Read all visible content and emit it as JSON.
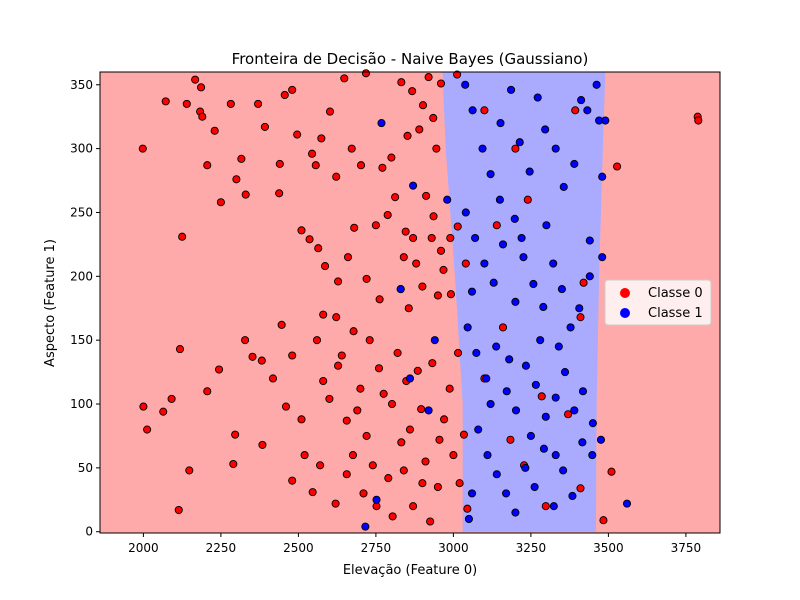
{
  "chart_data": {
    "type": "scatter",
    "title": "Fronteira de Decisão - Naive Bayes (Gaussiano)",
    "xlabel": "Elevação (Feature 0)",
    "ylabel": "Aspecto (Feature 1)",
    "xlim": [
      1860,
      3860
    ],
    "ylim": [
      -1,
      360
    ],
    "x_ticks": [
      2000,
      2250,
      2500,
      2750,
      3000,
      3250,
      3500,
      3750
    ],
    "y_ticks": [
      0,
      50,
      100,
      150,
      200,
      250,
      300,
      350
    ],
    "grid": false,
    "legend_position": "right",
    "decision_regions": {
      "class_0_color": "#ffaaaa",
      "class_1_color": "#aaaaff",
      "class_1_band": [
        {
          "y": 0,
          "x_start": 3030,
          "x_end": 3460
        },
        {
          "y": 100,
          "x_start": 3030,
          "x_end": 3462
        },
        {
          "y": 200,
          "x_start": 3005,
          "x_end": 3470
        },
        {
          "y": 300,
          "x_start": 2975,
          "x_end": 3482
        },
        {
          "y": 360,
          "x_start": 2965,
          "x_end": 3490
        }
      ]
    },
    "series": [
      {
        "name": "Classe 0",
        "color": "#ff0000",
        "points": [
          [
            1998,
            300
          ],
          [
            2072,
            337
          ],
          [
            2140,
            335
          ],
          [
            2167,
            354
          ],
          [
            2183,
            329
          ],
          [
            2206,
            287
          ],
          [
            2186,
            348
          ],
          [
            2190,
            325
          ],
          [
            2230,
            314
          ],
          [
            2282,
            335
          ],
          [
            2300,
            276
          ],
          [
            2330,
            264
          ],
          [
            2316,
            292
          ],
          [
            2370,
            335
          ],
          [
            2392,
            317
          ],
          [
            2440,
            288
          ],
          [
            2456,
            342
          ],
          [
            2480,
            346
          ],
          [
            2496,
            311
          ],
          [
            2544,
            296
          ],
          [
            2556,
            287
          ],
          [
            2574,
            308
          ],
          [
            2602,
            329
          ],
          [
            2622,
            278
          ],
          [
            2648,
            355
          ],
          [
            2672,
            300
          ],
          [
            2702,
            287
          ],
          [
            2718,
            359
          ],
          [
            2771,
            285
          ],
          [
            2800,
            293
          ],
          [
            2832,
            352
          ],
          [
            2867,
            345
          ],
          [
            2852,
            310
          ],
          [
            2902,
            334
          ],
          [
            2920,
            356
          ],
          [
            2945,
            300
          ],
          [
            2960,
            351
          ],
          [
            3012,
            358
          ],
          [
            2890,
            315
          ],
          [
            2935,
            324
          ],
          [
            2125,
            231
          ],
          [
            2250,
            258
          ],
          [
            2438,
            265
          ],
          [
            2510,
            236
          ],
          [
            2536,
            229
          ],
          [
            2564,
            222
          ],
          [
            2586,
            208
          ],
          [
            2628,
            196
          ],
          [
            2660,
            215
          ],
          [
            2680,
            238
          ],
          [
            2750,
            240
          ],
          [
            2788,
            248
          ],
          [
            2812,
            262
          ],
          [
            2846,
            235
          ],
          [
            2880,
            210
          ],
          [
            2912,
            263
          ],
          [
            2936,
            247
          ],
          [
            2960,
            220
          ],
          [
            2990,
            230
          ],
          [
            3040,
            210
          ],
          [
            2720,
            198
          ],
          [
            2762,
            182
          ],
          [
            2830,
            190
          ],
          [
            2856,
            175
          ],
          [
            2900,
            192
          ],
          [
            2992,
            186
          ],
          [
            2622,
            168
          ],
          [
            2678,
            157
          ],
          [
            2580,
            170
          ],
          [
            3014,
            239
          ],
          [
            2950,
            185
          ],
          [
            2870,
            230
          ],
          [
            2840,
            215
          ],
          [
            2930,
            230
          ],
          [
            2968,
            205
          ],
          [
            2000,
            98
          ],
          [
            2012,
            80
          ],
          [
            2064,
            94
          ],
          [
            2091,
            104
          ],
          [
            2118,
            143
          ],
          [
            2148,
            48
          ],
          [
            2114,
            17
          ],
          [
            2206,
            110
          ],
          [
            2244,
            127
          ],
          [
            2290,
            53
          ],
          [
            2296,
            76
          ],
          [
            2328,
            150
          ],
          [
            2352,
            137
          ],
          [
            2382,
            134
          ],
          [
            2384,
            68
          ],
          [
            2418,
            120
          ],
          [
            2446,
            162
          ],
          [
            2480,
            40
          ],
          [
            2510,
            88
          ],
          [
            2546,
            31
          ],
          [
            2570,
            52
          ],
          [
            2600,
            104
          ],
          [
            2628,
            130
          ],
          [
            2656,
            87
          ],
          [
            2676,
            60
          ],
          [
            2700,
            112
          ],
          [
            2720,
            75
          ],
          [
            2730,
            150
          ],
          [
            2760,
            128
          ],
          [
            2790,
            42
          ],
          [
            2802,
            100
          ],
          [
            2832,
            70
          ],
          [
            2848,
            118
          ],
          [
            2870,
            20
          ],
          [
            2896,
            96
          ],
          [
            2910,
            55
          ],
          [
            2932,
            132
          ],
          [
            2950,
            35
          ],
          [
            2970,
            88
          ],
          [
            3000,
            60
          ],
          [
            3015,
            140
          ],
          [
            3034,
            76
          ],
          [
            3045,
            18
          ],
          [
            2560,
            150
          ],
          [
            2640,
            138
          ],
          [
            2690,
            95
          ],
          [
            2740,
            52
          ],
          [
            2775,
            108
          ],
          [
            2820,
            140
          ],
          [
            2860,
            80
          ],
          [
            2885,
            126
          ],
          [
            2925,
            8
          ],
          [
            2988,
            112
          ],
          [
            2480,
            138
          ],
          [
            2460,
            98
          ],
          [
            2520,
            60
          ],
          [
            2580,
            118
          ],
          [
            2620,
            22
          ],
          [
            2656,
            45
          ],
          [
            2710,
            30
          ],
          [
            2752,
            20
          ],
          [
            2804,
            12
          ],
          [
            2840,
            48
          ],
          [
            2900,
            38
          ],
          [
            2955,
            72
          ],
          [
            3020,
            38
          ],
          [
            3100,
            120
          ],
          [
            3160,
            160
          ],
          [
            3184,
            72
          ],
          [
            3228,
            52
          ],
          [
            3285,
            106
          ],
          [
            3298,
            20
          ],
          [
            3370,
            92
          ],
          [
            3410,
            34
          ],
          [
            3484,
            9
          ],
          [
            3420,
            195
          ],
          [
            3410,
            168
          ],
          [
            3393,
            330
          ],
          [
            3510,
            47
          ],
          [
            3528,
            286
          ],
          [
            3788,
            325
          ],
          [
            3790,
            322
          ],
          [
            3200,
            300
          ],
          [
            3240,
            260
          ],
          [
            3100,
            330
          ],
          [
            3140,
            240
          ]
        ]
      },
      {
        "name": "Classe 1",
        "color": "#0000ff",
        "points": [
          [
            2768,
            320
          ],
          [
            2870,
            271
          ],
          [
            2716,
            4
          ],
          [
            2752,
            25
          ],
          [
            2830,
            190
          ],
          [
            2860,
            120
          ],
          [
            2920,
            95
          ],
          [
            3038,
            350
          ],
          [
            3062,
            330
          ],
          [
            3094,
            300
          ],
          [
            3120,
            280
          ],
          [
            3152,
            320
          ],
          [
            3186,
            346
          ],
          [
            3214,
            305
          ],
          [
            3246,
            282
          ],
          [
            3272,
            340
          ],
          [
            3296,
            315
          ],
          [
            3330,
            300
          ],
          [
            3356,
            270
          ],
          [
            3390,
            288
          ],
          [
            3412,
            338
          ],
          [
            3432,
            330
          ],
          [
            3462,
            350
          ],
          [
            3470,
            322
          ],
          [
            3480,
            278
          ],
          [
            3440,
            228
          ],
          [
            3480,
            215
          ],
          [
            3040,
            250
          ],
          [
            3070,
            230
          ],
          [
            3100,
            210
          ],
          [
            3130,
            195
          ],
          [
            3160,
            225
          ],
          [
            3198,
            245
          ],
          [
            3226,
            215
          ],
          [
            3258,
            194
          ],
          [
            3290,
            176
          ],
          [
            3322,
            210
          ],
          [
            3350,
            190
          ],
          [
            3378,
            160
          ],
          [
            3406,
            175
          ],
          [
            3440,
            200
          ],
          [
            3046,
            160
          ],
          [
            3074,
            140
          ],
          [
            3106,
            120
          ],
          [
            3138,
            145
          ],
          [
            3172,
            110
          ],
          [
            3202,
            95
          ],
          [
            3234,
            130
          ],
          [
            3266,
            115
          ],
          [
            3298,
            90
          ],
          [
            3330,
            105
          ],
          [
            3360,
            125
          ],
          [
            3390,
            95
          ],
          [
            3418,
            110
          ],
          [
            3450,
            85
          ],
          [
            3080,
            80
          ],
          [
            3110,
            60
          ],
          [
            3140,
            45
          ],
          [
            3170,
            30
          ],
          [
            3200,
            15
          ],
          [
            3232,
            50
          ],
          [
            3262,
            35
          ],
          [
            3292,
            65
          ],
          [
            3324,
            20
          ],
          [
            3354,
            48
          ],
          [
            3384,
            28
          ],
          [
            3416,
            70
          ],
          [
            3448,
            60
          ],
          [
            3050,
            10
          ],
          [
            3476,
            72
          ],
          [
            3490,
            322
          ],
          [
            3560,
            22
          ],
          [
            3060,
            188
          ],
          [
            3150,
            260
          ],
          [
            3220,
            230
          ],
          [
            3300,
            240
          ],
          [
            3280,
            150
          ],
          [
            3200,
            180
          ],
          [
            3340,
            145
          ],
          [
            3120,
            100
          ],
          [
            3250,
            75
          ],
          [
            3180,
            135
          ],
          [
            3330,
            60
          ],
          [
            3060,
            30
          ],
          [
            2940,
            150
          ],
          [
            2980,
            260
          ]
        ]
      }
    ]
  }
}
